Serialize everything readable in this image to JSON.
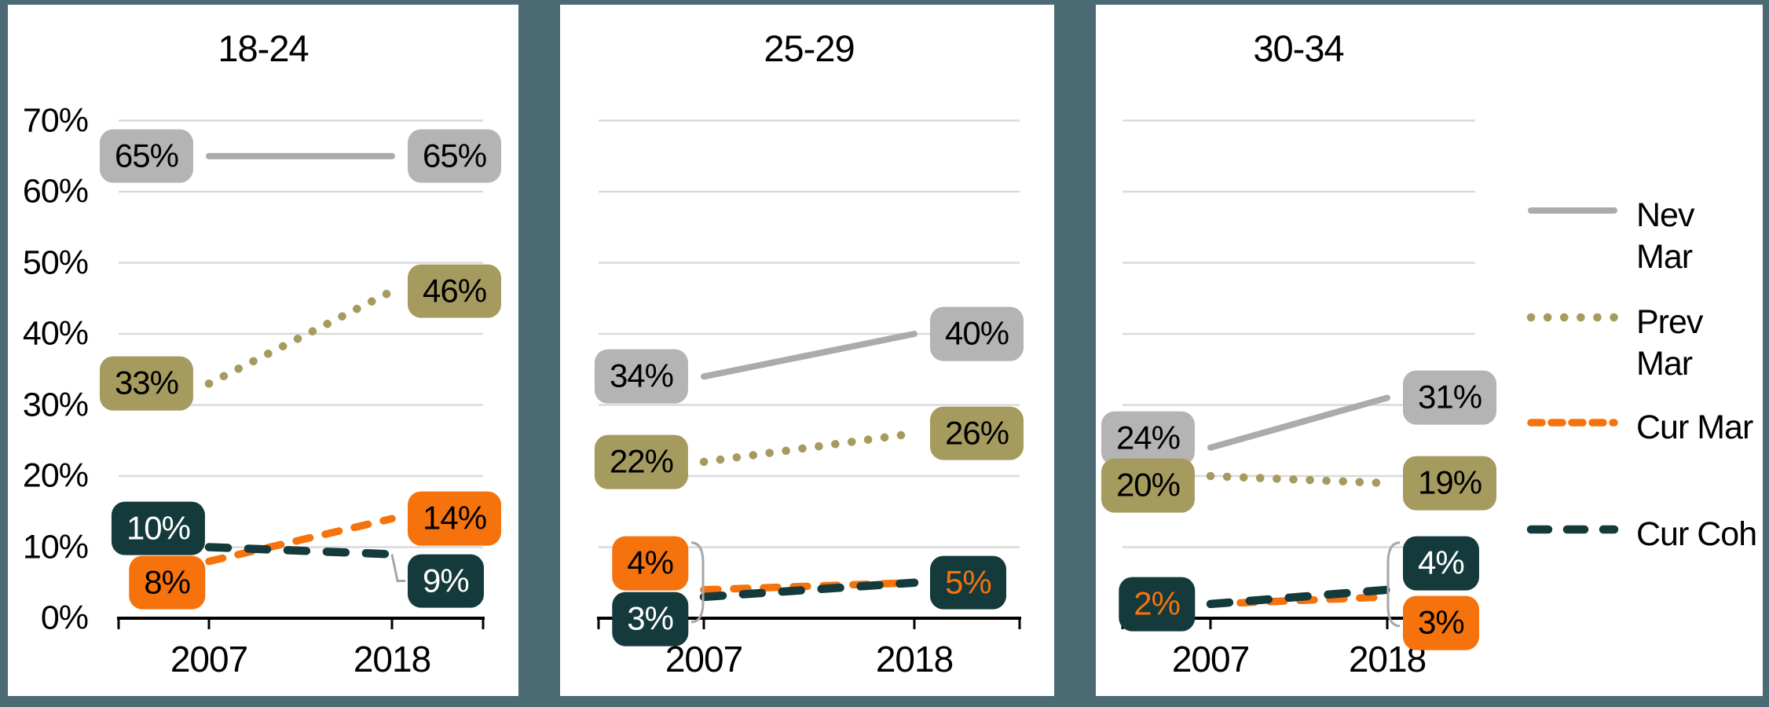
{
  "colors": {
    "frame": "#4C6A74",
    "background": "#FFFFFF",
    "grid": "#DADADA",
    "axis": "#000000",
    "leader": "#A6A6A6",
    "gray_line": "#ABABAB",
    "gray": "#B4B4B4",
    "khaki": "#A69B5F",
    "orange": "#F5720C",
    "teal": "#143A3C",
    "black": "#000000",
    "white": "#FFFFFF"
  },
  "legend": {
    "items": [
      {
        "series": "nev_mar",
        "label": "Nev Mar",
        "style": "solid",
        "wrap": true
      },
      {
        "series": "prev_mar",
        "label": "Prev Mar",
        "style": "dotted",
        "wrap": true
      },
      {
        "series": "cur_mar",
        "label": "Cur Mar",
        "style": "dashed",
        "wrap": false
      },
      {
        "series": "cur_coh",
        "label": "Cur Coh",
        "style": "long-dash",
        "wrap": false
      }
    ]
  },
  "chart_data": {
    "type": "line",
    "x": [
      "2007",
      "2018"
    ],
    "y_axis": {
      "min": 0,
      "max": 70,
      "tick_step": 10,
      "grid": true,
      "tick_labels": [
        "0%",
        "10%",
        "20%",
        "30%",
        "40%",
        "50%",
        "60%",
        "70%"
      ]
    },
    "panels": [
      {
        "title": "18-24",
        "series": [
          {
            "key": "nev_mar",
            "name": "Nev Mar",
            "values": [
              65,
              65
            ],
            "labels": [
              {
                "text": "65%",
                "side": "left"
              },
              {
                "text": "65%",
                "side": "right"
              }
            ]
          },
          {
            "key": "prev_mar",
            "name": "Prev Mar",
            "values": [
              33,
              46
            ],
            "labels": [
              {
                "text": "33%",
                "side": "left"
              },
              {
                "text": "46%",
                "side": "right"
              }
            ]
          },
          {
            "key": "cur_mar",
            "name": "Cur Mar",
            "values": [
              8,
              14
            ],
            "labels": [
              {
                "text": "8%",
                "side": "left",
                "dy": 27,
                "dx": 15
              },
              {
                "text": "14%",
                "side": "right"
              }
            ]
          },
          {
            "key": "cur_coh",
            "name": "Cur Coh",
            "values": [
              10,
              9
            ],
            "labels": [
              {
                "text": "10%",
                "side": "left",
                "dy": -24,
                "dx": 15
              },
              {
                "text": "9%",
                "side": "right",
                "dy": 34,
                "leader": true
              }
            ]
          }
        ]
      },
      {
        "title": "25-29",
        "bracket": {
          "x_index": 0
        },
        "series": [
          {
            "key": "nev_mar",
            "name": "Nev Mar",
            "values": [
              34,
              40
            ],
            "labels": [
              {
                "text": "34%",
                "side": "left"
              },
              {
                "text": "40%",
                "side": "right"
              }
            ]
          },
          {
            "key": "prev_mar",
            "name": "Prev Mar",
            "values": [
              22,
              26
            ],
            "labels": [
              {
                "text": "22%",
                "side": "left"
              },
              {
                "text": "26%",
                "side": "right"
              }
            ]
          },
          {
            "key": "cur_mar",
            "name": "Cur Mar",
            "values": [
              4,
              5
            ],
            "labels": [
              {
                "text": "4%",
                "side": "left",
                "dy": -34
              },
              {
                "text": "5%",
                "side": "right",
                "bg": "teal",
                "fg": "orange"
              }
            ]
          },
          {
            "key": "cur_coh",
            "name": "Cur Coh",
            "values": [
              3,
              5
            ],
            "labels": [
              {
                "text": "3%",
                "side": "left",
                "dy": 28
              },
              null
            ]
          }
        ]
      },
      {
        "title": "30-34",
        "bracket": {
          "x_index": 1
        },
        "series": [
          {
            "key": "nev_mar",
            "name": "Nev Mar",
            "values": [
              24,
              31
            ],
            "labels": [
              {
                "text": "24%",
                "side": "left",
                "dy": -12
              },
              {
                "text": "31%",
                "side": "right"
              }
            ]
          },
          {
            "key": "prev_mar",
            "name": "Prev Mar",
            "values": [
              20,
              19
            ],
            "labels": [
              {
                "text": "20%",
                "side": "left",
                "dy": 12
              },
              {
                "text": "19%",
                "side": "right"
              }
            ]
          },
          {
            "key": "cur_mar",
            "name": "Cur Mar",
            "values": [
              2,
              3
            ],
            "labels": [
              {
                "text": "2%",
                "side": "left",
                "bg": "teal",
                "fg": "orange"
              },
              {
                "text": "3%",
                "side": "right",
                "dy": 33
              }
            ]
          },
          {
            "key": "cur_coh",
            "name": "Cur Coh",
            "values": [
              2,
              4
            ],
            "labels": [
              null,
              {
                "text": "4%",
                "side": "right",
                "dy": -34
              }
            ]
          }
        ]
      }
    ]
  }
}
